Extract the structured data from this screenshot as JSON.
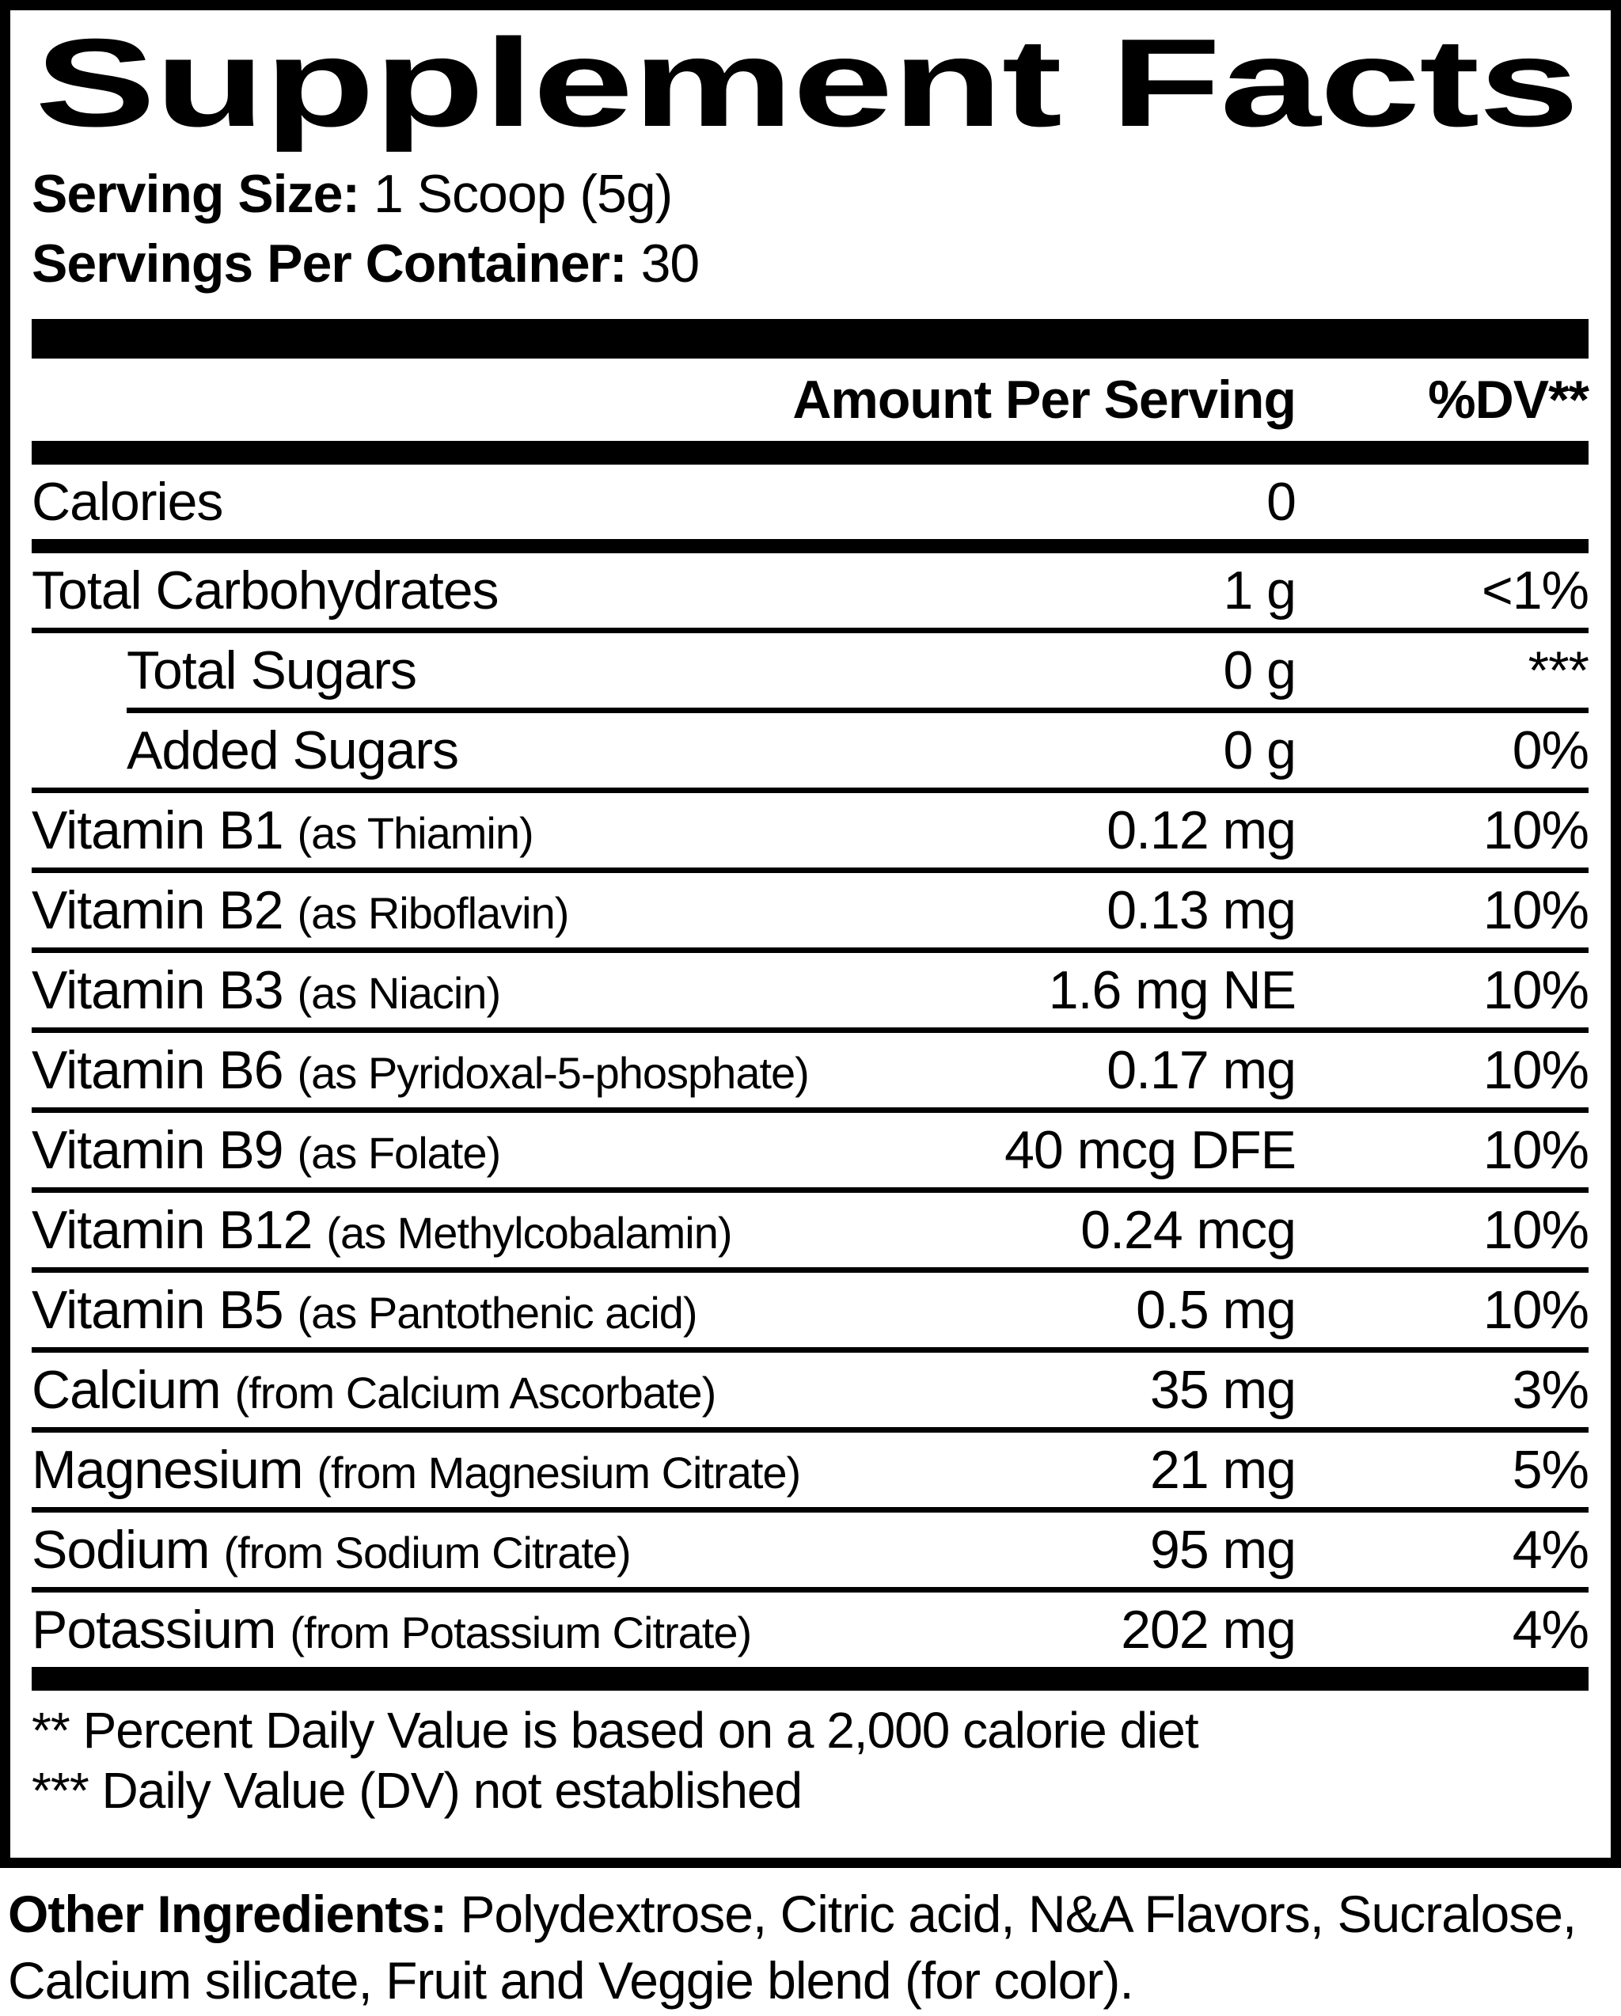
{
  "title": "Supplement Facts",
  "serving": {
    "size_label": "Serving Size:",
    "size_value": "1 Scoop (5g)",
    "per_container_label": "Servings Per Container:",
    "per_container_value": "30"
  },
  "columns": {
    "amount_header": "Amount Per Serving",
    "dv_header": "%DV**"
  },
  "rows": [
    {
      "name": "Calories",
      "detail": "",
      "amount": "0",
      "dv": "",
      "indent": false,
      "sep_above": "none"
    },
    {
      "name": "Total Carbohydrates",
      "detail": "",
      "amount": "1 g",
      "dv": "<1%",
      "indent": false,
      "sep_above": "medium"
    },
    {
      "name": "Total Sugars",
      "detail": "",
      "amount": "0 g",
      "dv": "***",
      "indent": true,
      "sep_above": "line"
    },
    {
      "name": "Added Sugars",
      "detail": "",
      "amount": "0 g",
      "dv": "0%",
      "indent": true,
      "sep_above": "indent"
    },
    {
      "name": "Vitamin B1",
      "detail": "(as Thiamin)",
      "amount": "0.12 mg",
      "dv": "10%",
      "indent": false,
      "sep_above": "line"
    },
    {
      "name": "Vitamin B2",
      "detail": "(as Riboflavin)",
      "amount": "0.13 mg",
      "dv": "10%",
      "indent": false,
      "sep_above": "line"
    },
    {
      "name": "Vitamin B3",
      "detail": "(as Niacin)",
      "amount": "1.6 mg NE",
      "dv": "10%",
      "indent": false,
      "sep_above": "line"
    },
    {
      "name": "Vitamin B6",
      "detail": "(as Pyridoxal-5-phosphate)",
      "amount": "0.17 mg",
      "dv": "10%",
      "indent": false,
      "sep_above": "line"
    },
    {
      "name": "Vitamin B9",
      "detail": "(as Folate)",
      "amount": "40 mcg DFE",
      "dv": "10%",
      "indent": false,
      "sep_above": "line"
    },
    {
      "name": "Vitamin B12",
      "detail": "(as Methylcobalamin)",
      "amount": "0.24 mcg",
      "dv": "10%",
      "indent": false,
      "sep_above": "line"
    },
    {
      "name": "Vitamin B5",
      "detail": "(as Pantothenic acid)",
      "amount": "0.5 mg",
      "dv": "10%",
      "indent": false,
      "sep_above": "line"
    },
    {
      "name": "Calcium",
      "detail": "(from Calcium Ascorbate)",
      "amount": "35 mg",
      "dv": "3%",
      "indent": false,
      "sep_above": "line"
    },
    {
      "name": "Magnesium",
      "detail": "(from Magnesium Citrate)",
      "amount": "21 mg",
      "dv": "5%",
      "indent": false,
      "sep_above": "line"
    },
    {
      "name": "Sodium",
      "detail": "(from Sodium Citrate)",
      "amount": "95 mg",
      "dv": "4%",
      "indent": false,
      "sep_above": "line"
    },
    {
      "name": "Potassium",
      "detail": "(from Potassium Citrate)",
      "amount": "202 mg",
      "dv": "4%",
      "indent": false,
      "sep_above": "line"
    }
  ],
  "footnotes": [
    "** Percent Daily Value is based on a 2,000 calorie diet",
    "*** Daily Value (DV) not established"
  ],
  "other_ingredients": {
    "label": "Other Ingredients:",
    "line1": "Polydextrose, Citric acid, N&A Flavors,",
    "line2": "Sucralose, Calcium silicate, Fruit and Veggie blend (for color)."
  },
  "colors": {
    "text": "#000000",
    "background": "#ffffff"
  }
}
